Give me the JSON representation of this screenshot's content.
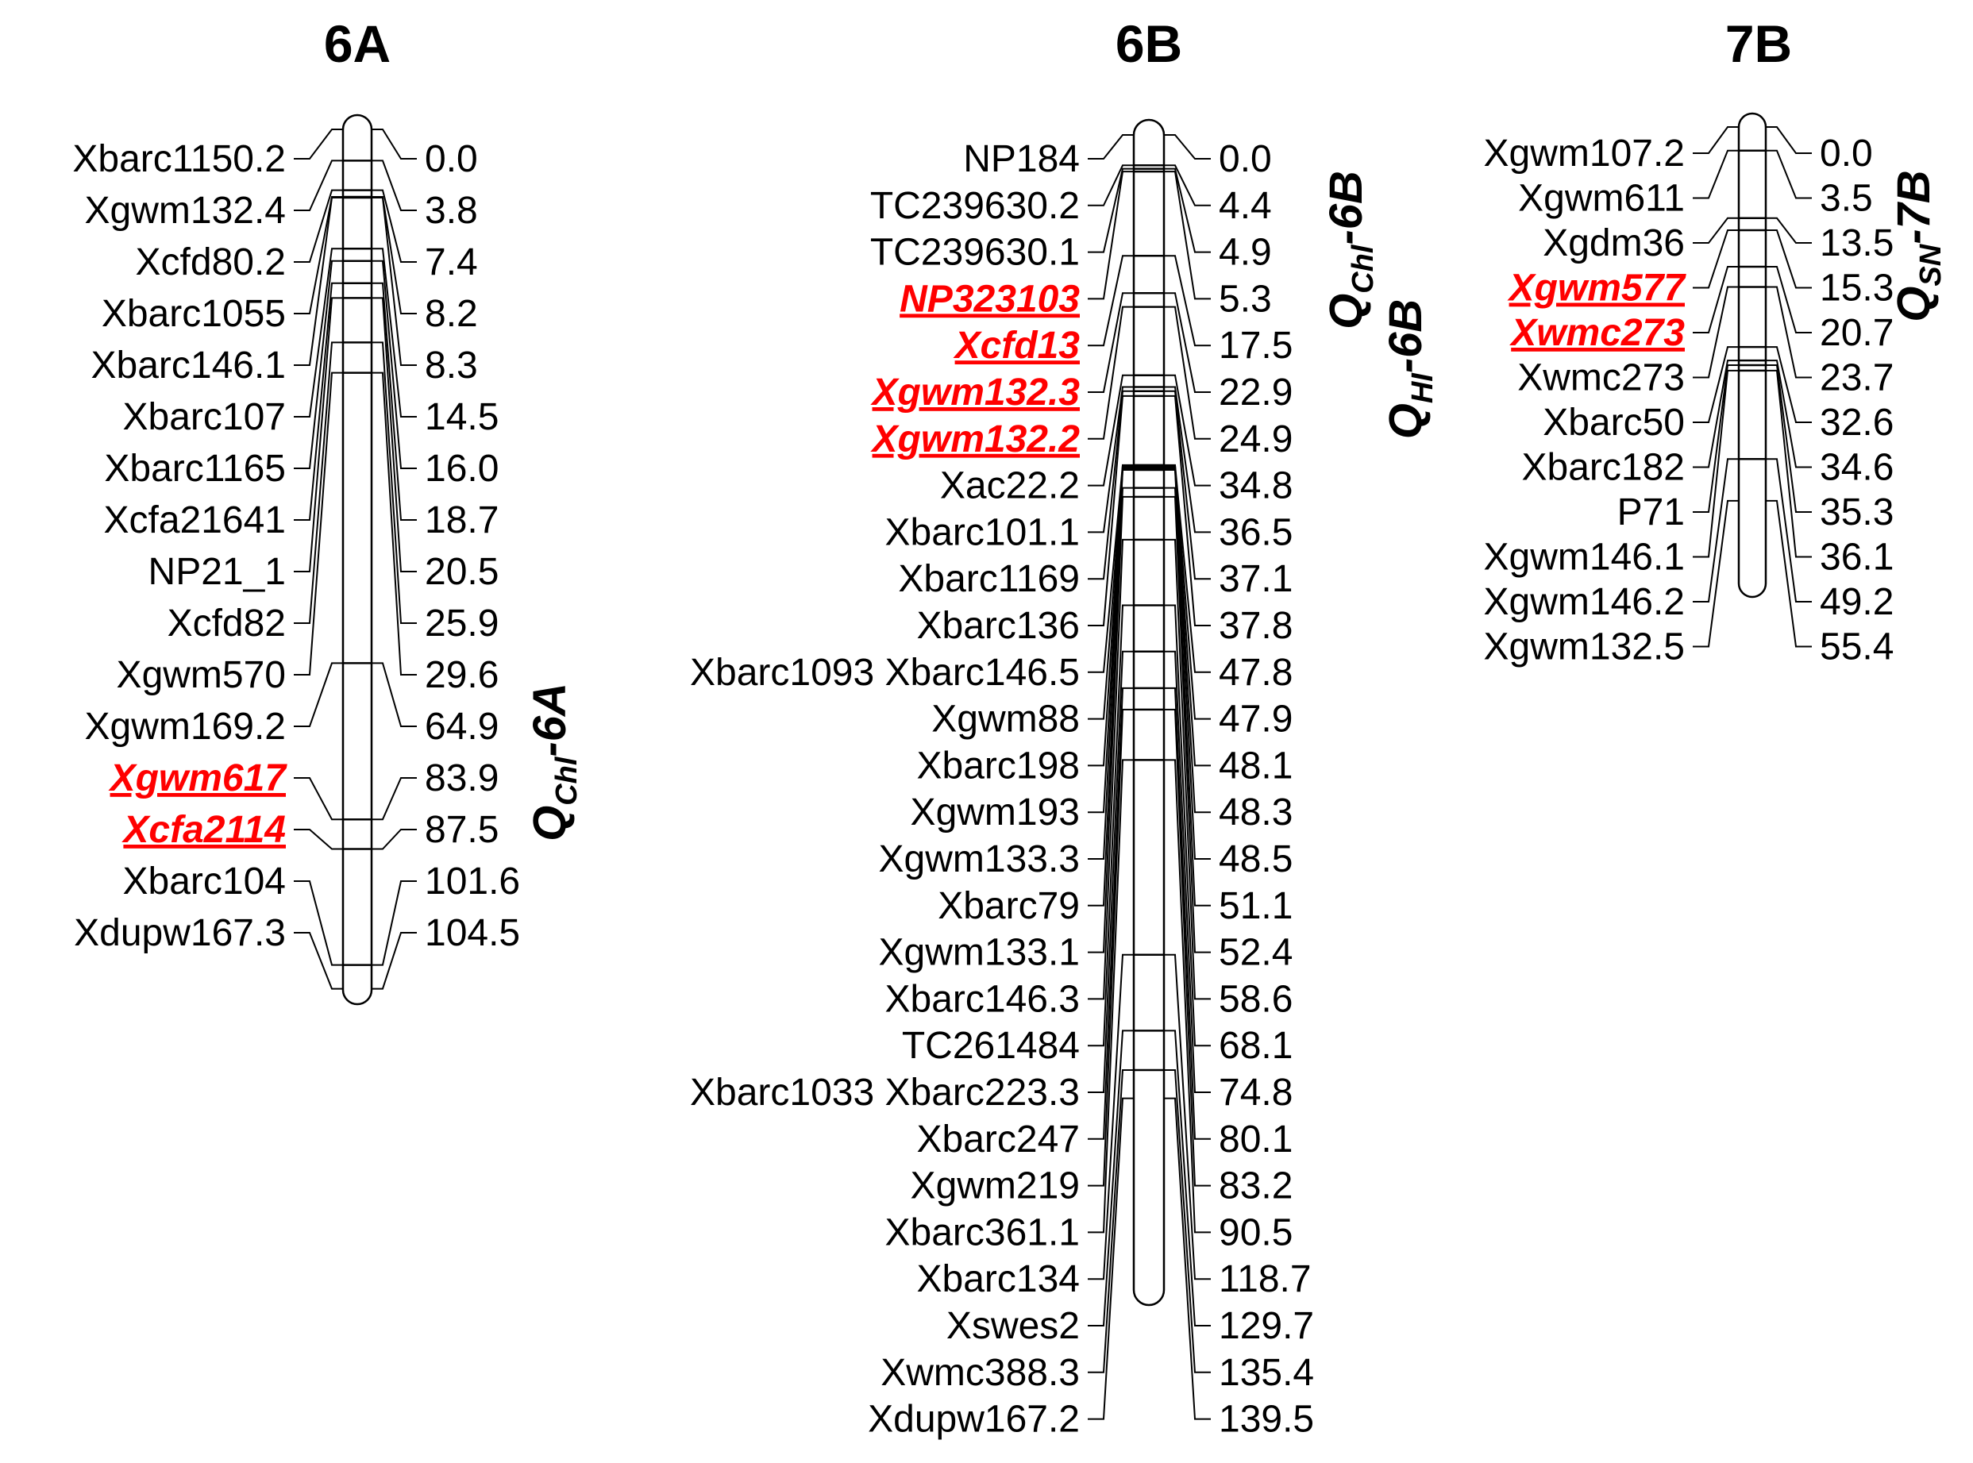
{
  "colors": {
    "text": "#000000",
    "highlight": "#ff0000",
    "background": "#ffffff"
  },
  "chromosomes": [
    {
      "name": "6A",
      "markers": [
        {
          "name": "Xbarc1150.2",
          "pos": "0.0"
        },
        {
          "name": "Xgwm132.4",
          "pos": "3.8"
        },
        {
          "name": "Xcfd80.2",
          "pos": "7.4"
        },
        {
          "name": "Xbarc1055",
          "pos": "8.2"
        },
        {
          "name": "Xbarc146.1",
          "pos": "8.3"
        },
        {
          "name": "Xbarc107",
          "pos": "14.5"
        },
        {
          "name": "Xbarc1165",
          "pos": "16.0"
        },
        {
          "name": "Xcfa21641",
          "pos": "18.7"
        },
        {
          "name": "NP21_1",
          "pos": "20.5"
        },
        {
          "name": "Xcfd82",
          "pos": "25.9"
        },
        {
          "name": "Xgwm570",
          "pos": "29.6"
        },
        {
          "name": "Xgwm169.2",
          "pos": "64.9"
        },
        {
          "name": "Xgwm617",
          "pos": "83.9",
          "highlight": true
        },
        {
          "name": "Xcfa2114",
          "pos": "87.5",
          "highlight": true
        },
        {
          "name": "Xbarc104",
          "pos": "101.6"
        },
        {
          "name": "Xdupw167.3",
          "pos": "104.5"
        }
      ],
      "qtls": [
        {
          "base": "Q",
          "sub": "Chl",
          "tail": "-6A"
        }
      ]
    },
    {
      "name": "6B",
      "markers": [
        {
          "name": "NP184",
          "pos": "0.0"
        },
        {
          "name": "TC239630.2",
          "pos": "4.4"
        },
        {
          "name": "TC239630.1",
          "pos": "4.9"
        },
        {
          "name": "NP323103",
          "pos": "5.3",
          "highlight": true
        },
        {
          "name": "Xcfd13",
          "pos": "17.5",
          "highlight": true
        },
        {
          "name": "Xgwm132.3",
          "pos": "22.9",
          "highlight": true
        },
        {
          "name": "Xgwm132.2",
          "pos": "24.9",
          "highlight": true
        },
        {
          "name": "Xac22.2",
          "pos": "34.8"
        },
        {
          "name": "Xbarc101.1",
          "pos": "36.5"
        },
        {
          "name": "Xbarc1169",
          "pos": "37.1"
        },
        {
          "name": "Xbarc136",
          "pos": "37.8"
        },
        {
          "name": "Xbarc1093 Xbarc146.5",
          "pos": "47.8"
        },
        {
          "name": "Xgwm88",
          "pos": "47.9"
        },
        {
          "name": "Xbarc198",
          "pos": "48.1"
        },
        {
          "name": "Xgwm193",
          "pos": "48.3"
        },
        {
          "name": "Xgwm133.3",
          "pos": "48.5"
        },
        {
          "name": "Xbarc79",
          "pos": "51.1"
        },
        {
          "name": "Xgwm133.1",
          "pos": "52.4"
        },
        {
          "name": "Xbarc146.3",
          "pos": "58.6"
        },
        {
          "name": "TC261484",
          "pos": "68.1"
        },
        {
          "name": "Xbarc1033 Xbarc223.3",
          "pos": "74.8"
        },
        {
          "name": "Xbarc247",
          "pos": "80.1"
        },
        {
          "name": "Xgwm219",
          "pos": "83.2"
        },
        {
          "name": "Xbarc361.1",
          "pos": "90.5"
        },
        {
          "name": "Xbarc134",
          "pos": "118.7"
        },
        {
          "name": "Xswes2",
          "pos": "129.7"
        },
        {
          "name": "Xwmc388.3",
          "pos": "135.4"
        },
        {
          "name": "Xdupw167.2",
          "pos": "139.5"
        }
      ],
      "qtls": [
        {
          "base": "Q",
          "sub": "Chl",
          "tail": "-6B"
        },
        {
          "base": "Q",
          "sub": "HI",
          "tail": "-6B"
        }
      ]
    },
    {
      "name": "7B",
      "markers": [
        {
          "name": "Xgwm107.2",
          "pos": "0.0"
        },
        {
          "name": "Xgwm611",
          "pos": "3.5"
        },
        {
          "name": "Xgdm36",
          "pos": "13.5"
        },
        {
          "name": "Xgwm577",
          "pos": "15.3",
          "highlight": true
        },
        {
          "name": "Xwmc273",
          "pos": "20.7",
          "highlight": true
        },
        {
          "name": "Xwmc273",
          "pos": "23.7"
        },
        {
          "name": "Xbarc50",
          "pos": "32.6"
        },
        {
          "name": "Xbarc182",
          "pos": "34.6"
        },
        {
          "name": "P71",
          "pos": "35.3"
        },
        {
          "name": "Xgwm146.1",
          "pos": "36.1"
        },
        {
          "name": "Xgwm146.2",
          "pos": "49.2"
        },
        {
          "name": "Xgwm132.5",
          "pos": "55.4"
        }
      ],
      "qtls": [
        {
          "base": "Q",
          "sub": "SN",
          "tail": "-7B"
        }
      ]
    }
  ]
}
